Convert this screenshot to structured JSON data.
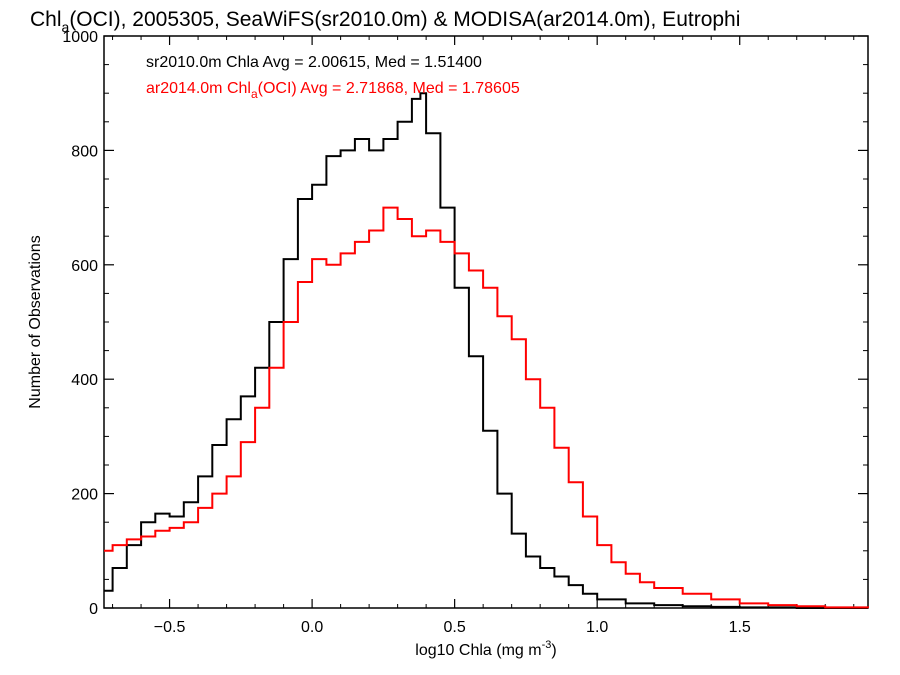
{
  "chart_data": {
    "type": "line",
    "style": "step histogram",
    "title": {
      "base": "Chl",
      "sub": "a",
      "rest": "(OCI), 2005305, SeaWiFS(sr2010.0m) & MODISA(ar2014.0m), Eutrophi"
    },
    "xlabel": {
      "base": "log10 Chla (mg m",
      "sup": "-3",
      "end": ")"
    },
    "ylabel": "Number of Observations",
    "xlim": [
      -0.73,
      1.95
    ],
    "ylim": [
      0,
      1000
    ],
    "x_ticks": [
      -0.5,
      0.0,
      0.5,
      1.0,
      1.5
    ],
    "x_tick_labels": [
      "−0.5",
      "0.0",
      "0.5",
      "1.0",
      "1.5"
    ],
    "y_ticks": [
      0,
      200,
      400,
      600,
      800,
      1000
    ],
    "y_tick_labels": [
      "0",
      "200",
      "400",
      "600",
      "800",
      "1000"
    ],
    "grid": false,
    "legend_position": "top-left",
    "legend": [
      {
        "text": "sr2010.0m Chla Avg = 2.00615, Med = 1.51400",
        "color": "#000000"
      },
      {
        "pre": "ar2014.0m Chl",
        "sub": "a",
        "post": "(OCI) Avg = 2.71868, Med = 1.78605",
        "color": "#ff0000"
      }
    ],
    "series": [
      {
        "color": "#000000",
        "x": [
          -0.73,
          -0.7,
          -0.65,
          -0.6,
          -0.55,
          -0.5,
          -0.45,
          -0.4,
          -0.35,
          -0.3,
          -0.25,
          -0.2,
          -0.15,
          -0.1,
          -0.05,
          0.0,
          0.05,
          0.1,
          0.15,
          0.2,
          0.25,
          0.3,
          0.35,
          0.38,
          0.4,
          0.45,
          0.5,
          0.55,
          0.6,
          0.65,
          0.7,
          0.75,
          0.8,
          0.85,
          0.9,
          0.95,
          1.0,
          1.1,
          1.2,
          1.3,
          1.4,
          1.5,
          1.6,
          1.7,
          1.8,
          1.95
        ],
        "y": [
          30,
          70,
          110,
          150,
          165,
          160,
          185,
          230,
          285,
          330,
          370,
          420,
          500,
          610,
          715,
          740,
          790,
          800,
          820,
          800,
          820,
          850,
          890,
          900,
          830,
          700,
          560,
          440,
          310,
          200,
          130,
          90,
          70,
          55,
          40,
          25,
          15,
          8,
          5,
          3,
          2,
          1,
          1,
          0,
          0,
          0
        ]
      },
      {
        "color": "#ff0000",
        "x": [
          -0.73,
          -0.7,
          -0.65,
          -0.6,
          -0.55,
          -0.5,
          -0.45,
          -0.4,
          -0.35,
          -0.3,
          -0.25,
          -0.2,
          -0.15,
          -0.1,
          -0.05,
          0.0,
          0.05,
          0.1,
          0.15,
          0.2,
          0.25,
          0.3,
          0.35,
          0.4,
          0.45,
          0.5,
          0.55,
          0.6,
          0.65,
          0.7,
          0.75,
          0.8,
          0.85,
          0.9,
          0.95,
          1.0,
          1.05,
          1.1,
          1.15,
          1.2,
          1.3,
          1.4,
          1.5,
          1.6,
          1.7,
          1.8,
          1.95
        ],
        "y": [
          100,
          110,
          120,
          125,
          135,
          140,
          150,
          175,
          200,
          230,
          290,
          350,
          420,
          500,
          570,
          610,
          600,
          620,
          640,
          660,
          700,
          680,
          650,
          660,
          640,
          620,
          590,
          560,
          510,
          470,
          400,
          350,
          280,
          220,
          160,
          110,
          80,
          60,
          45,
          35,
          25,
          15,
          8,
          5,
          3,
          1,
          0
        ]
      }
    ]
  }
}
